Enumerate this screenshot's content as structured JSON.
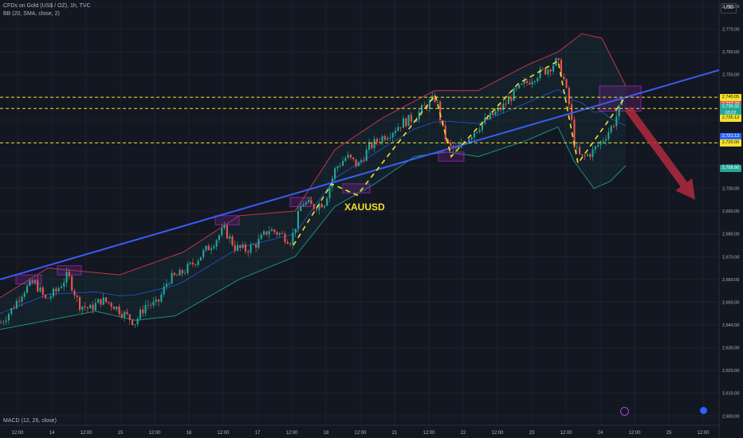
{
  "header": {
    "symbol_line": "CFDs on Gold (US$ / OZ), 1h, TVC",
    "indicator_line": "BB (20, SMA, close, 2)",
    "macd_label": "MACD (12, 26, close)",
    "currency": "USD"
  },
  "annotation": {
    "text": "XAUUSD",
    "color": "#f5e12a"
  },
  "colors": {
    "background": "#131722",
    "grid": "#1e222d",
    "up": "#26a69a",
    "down": "#ef5350",
    "bb_upper": "#c2334a",
    "bb_lower": "#1f8f7a",
    "bb_basis": "#2962ff",
    "trendline": "#3b5cf0",
    "support": "#f5e12a",
    "zone": "#9c27b0",
    "arrow": "#b2293d"
  },
  "price_tags": [
    {
      "text": "2,740.05",
      "color": "#f5e12a"
    },
    {
      "text": "2,737.48",
      "color": "#ef5350"
    },
    {
      "text": "2,735.32",
      "color": "#26a69a"
    },
    {
      "text": "03:02",
      "color": "#26a69a"
    },
    {
      "text": "2,735.13",
      "color": "#f5e12a"
    },
    {
      "text": "2,721.13",
      "color": "#2962ff"
    },
    {
      "text": "2,720.00",
      "color": "#f5e12a"
    },
    {
      "text": "2,708.80",
      "color": "#26a69a"
    }
  ],
  "chart_data": {
    "type": "candlestick",
    "timeframe": "1h",
    "ylim": [
      2598,
      2780
    ],
    "y_ticks": [
      2600,
      2610,
      2620,
      2630,
      2640,
      2650,
      2660,
      2670,
      2680,
      2690,
      2700,
      2710,
      2720,
      2730,
      2740,
      2750,
      2760,
      2770,
      2780
    ],
    "y_tick_labels": [
      "2,600.00",
      "2,610.00",
      "2,620.00",
      "2,630.00",
      "2,640.00",
      "2,650.00",
      "2,660.00",
      "2,670.00",
      "2,680.00",
      "2,690.00",
      "2,700.00",
      "2,710.00",
      "2,720.00",
      "2,730.00",
      "2,740.00",
      "2,750.00",
      "2,760.00",
      "2,770.00",
      "2,780.00"
    ],
    "x_tick_labels": [
      "12:00",
      "14",
      "12:00",
      "15",
      "12:00",
      "16",
      "12:00",
      "17",
      "12:00",
      "18",
      "12:00",
      "21",
      "12:00",
      "22",
      "12:00",
      "23",
      "12:00",
      "24",
      "12:00",
      "25",
      "12:00"
    ],
    "price_path": [
      [
        0,
        2641
      ],
      [
        14,
        2647
      ],
      [
        28,
        2655
      ],
      [
        42,
        2659
      ],
      [
        56,
        2651
      ],
      [
        70,
        2655
      ],
      [
        84,
        2662
      ],
      [
        98,
        2649
      ],
      [
        112,
        2647
      ],
      [
        126,
        2651
      ],
      [
        140,
        2649
      ],
      [
        154,
        2645
      ],
      [
        168,
        2641
      ],
      [
        182,
        2649
      ],
      [
        196,
        2649
      ],
      [
        210,
        2660
      ],
      [
        224,
        2662
      ],
      [
        238,
        2666
      ],
      [
        252,
        2671
      ],
      [
        266,
        2676
      ],
      [
        280,
        2682
      ],
      [
        294,
        2674
      ],
      [
        308,
        2673
      ],
      [
        322,
        2676
      ],
      [
        336,
        2682
      ],
      [
        350,
        2680
      ],
      [
        364,
        2677
      ],
      [
        378,
        2694
      ],
      [
        392,
        2692
      ],
      [
        406,
        2694
      ],
      [
        420,
        2709
      ],
      [
        434,
        2714
      ],
      [
        448,
        2710
      ],
      [
        462,
        2718
      ],
      [
        476,
        2722
      ],
      [
        490,
        2725
      ],
      [
        504,
        2729
      ],
      [
        518,
        2731
      ],
      [
        532,
        2736
      ],
      [
        546,
        2740
      ],
      [
        554,
        2726
      ],
      [
        562,
        2718
      ],
      [
        574,
        2717
      ],
      [
        588,
        2723
      ],
      [
        602,
        2728
      ],
      [
        616,
        2732
      ],
      [
        630,
        2736
      ],
      [
        644,
        2742
      ],
      [
        658,
        2746
      ],
      [
        672,
        2750
      ],
      [
        684,
        2752
      ],
      [
        698,
        2756
      ],
      [
        706,
        2748
      ],
      [
        714,
        2735
      ],
      [
        720,
        2718
      ],
      [
        728,
        2713
      ],
      [
        742,
        2716
      ],
      [
        756,
        2722
      ],
      [
        768,
        2728
      ],
      [
        778,
        2737
      ]
    ],
    "bollinger_bands": {
      "period": 20,
      "stddev": 2,
      "upper": [
        [
          0,
          2652
        ],
        [
          60,
          2665
        ],
        [
          150,
          2662
        ],
        [
          230,
          2672
        ],
        [
          300,
          2688
        ],
        [
          370,
          2690
        ],
        [
          420,
          2717
        ],
        [
          480,
          2731
        ],
        [
          545,
          2743
        ],
        [
          600,
          2743
        ],
        [
          660,
          2754
        ],
        [
          700,
          2760
        ],
        [
          730,
          2768
        ],
        [
          755,
          2766
        ],
        [
          785,
          2745
        ]
      ],
      "lower": [
        [
          0,
          2638
        ],
        [
          60,
          2642
        ],
        [
          120,
          2646
        ],
        [
          170,
          2642
        ],
        [
          220,
          2644
        ],
        [
          300,
          2660
        ],
        [
          370,
          2670
        ],
        [
          420,
          2692
        ],
        [
          470,
          2702
        ],
        [
          520,
          2714
        ],
        [
          560,
          2716
        ],
        [
          600,
          2714
        ],
        [
          660,
          2721
        ],
        [
          700,
          2727
        ],
        [
          720,
          2712
        ],
        [
          745,
          2700
        ],
        [
          765,
          2703
        ],
        [
          785,
          2710
        ]
      ]
    },
    "trendline": [
      [
        0,
        2660
      ],
      [
        902,
        2752
      ]
    ],
    "support_levels": [
      2740.05,
      2735.13,
      2720.0
    ],
    "zones": [
      [
        20,
        52,
        2662,
        2658
      ],
      [
        72,
        102,
        2666,
        2662
      ],
      [
        270,
        300,
        2688,
        2684
      ],
      [
        364,
        390,
        2696,
        2692
      ],
      [
        430,
        464,
        2702,
        2698
      ],
      [
        550,
        582,
        2716,
        2712
      ],
      [
        752,
        804,
        2745,
        2734
      ]
    ],
    "projection_path": [
      [
        368,
        2675
      ],
      [
        416,
        2702
      ],
      [
        448,
        2697
      ],
      [
        546,
        2741
      ],
      [
        566,
        2714
      ],
      [
        650,
        2746
      ],
      [
        700,
        2756
      ],
      [
        725,
        2711
      ],
      [
        782,
        2739
      ]
    ],
    "projection_arrow": {
      "from": [
        788,
        2735
      ],
      "to": [
        872,
        2695
      ]
    },
    "annotation_text": "XAUUSD"
  }
}
